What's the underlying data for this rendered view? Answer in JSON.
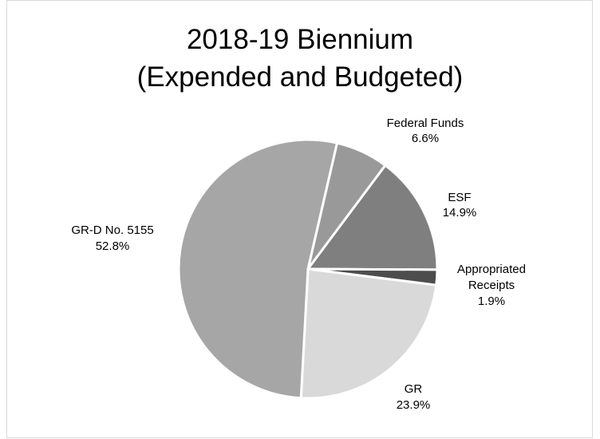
{
  "chart_data": {
    "type": "pie",
    "title_line1": "2018-19 Biennium",
    "title_line2": "(Expended and Budgeted)",
    "slices": [
      {
        "name": "Federal Funds",
        "value": 6.6,
        "label": "6.6%",
        "color": "#999999"
      },
      {
        "name": "ESF",
        "value": 14.9,
        "label": "14.9%",
        "color": "#7f7f7f"
      },
      {
        "name_lines": [
          "Appropriated",
          "Receipts"
        ],
        "value": 1.9,
        "label": "1.9%",
        "color": "#4d4d4d"
      },
      {
        "name": "GR",
        "value": 23.9,
        "label": "23.9%",
        "color": "#d9d9d9"
      },
      {
        "name": "GR-D No. 5155",
        "value": 52.8,
        "label": "52.8%",
        "color": "#a6a6a6"
      }
    ],
    "start_angle_deg": 13,
    "direction": "clockwise",
    "legend": "none"
  }
}
